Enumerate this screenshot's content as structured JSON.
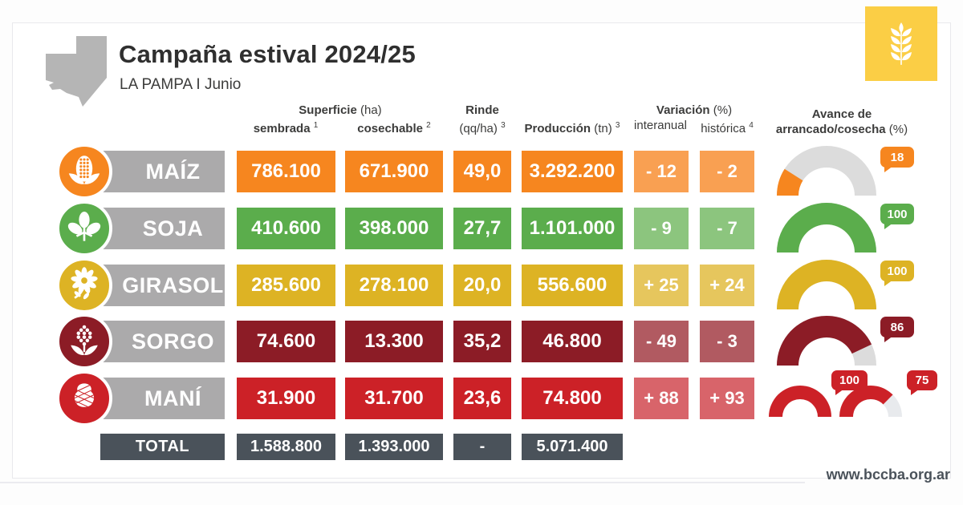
{
  "header": {
    "title": "Campaña estival 2024/25",
    "subtitle": "LA PAMPA I Junio"
  },
  "logo": {
    "color": "#FBCE45",
    "icon": "wheat-icon"
  },
  "columns": {
    "superficie_bold": "Superficie",
    "superficie_unit": "(ha)",
    "sembrada": "sembrada",
    "sembrada_sup": "1",
    "cosechable": "cosechable",
    "cosechable_sup": "2",
    "rinde_bold": "Rinde",
    "rinde_unit": "(qq/ha)",
    "rinde_sup": "3",
    "produccion_bold": "Producción",
    "produccion_unit": "(tn)",
    "produccion_sup": "3",
    "variacion_bold": "Variación",
    "variacion_unit": "(%)",
    "interanual": "interanual",
    "historica": "histórica",
    "historica_sup": "4",
    "avance_line1": "Avance de",
    "avance_line2": "arrancado/cosecha",
    "avance_unit": "(%)"
  },
  "bar_color": "#ABAAAB",
  "rows": [
    {
      "crop": "MAÍZ",
      "icon": "corn-icon",
      "color": "#F6861F",
      "light": "#F9A052",
      "track": "#DCDCDC",
      "sembrada": "786.100",
      "cosechable": "671.900",
      "rinde": "49,0",
      "produccion": "3.292.200",
      "interanual": "- 12",
      "historica": "- 2",
      "gauges": [
        18
      ]
    },
    {
      "crop": "SOJA",
      "icon": "soy-icon",
      "color": "#5BAD4C",
      "light": "#8CC57E",
      "track": "#DCDCDC",
      "sembrada": "410.600",
      "cosechable": "398.000",
      "rinde": "27,7",
      "produccion": "1.101.000",
      "interanual": "- 9",
      "historica": "- 7",
      "gauges": [
        100
      ]
    },
    {
      "crop": "GIRASOL",
      "icon": "sunflower-icon",
      "color": "#DDB324",
      "light": "#E6C65D",
      "track": "#DCDCDC",
      "sembrada": "285.600",
      "cosechable": "278.100",
      "rinde": "20,0",
      "produccion": "556.600",
      "interanual": "+ 25",
      "historica": "+ 24",
      "gauges": [
        100
      ]
    },
    {
      "crop": "SORGO",
      "icon": "sorghum-icon",
      "color": "#8C1C26",
      "light": "#B15A61",
      "track": "#DCDCDC",
      "sembrada": "74.600",
      "cosechable": "13.300",
      "rinde": "35,2",
      "produccion": "46.800",
      "interanual": "- 49",
      "historica": "- 3",
      "gauges": [
        86
      ]
    },
    {
      "crop": "MANÍ",
      "icon": "peanut-icon",
      "color": "#CC2127",
      "light": "#D8646A",
      "track": "#E8EAED",
      "sembrada": "31.900",
      "cosechable": "31.700",
      "rinde": "23,6",
      "produccion": "74.800",
      "interanual": "+ 88",
      "historica": "+ 93",
      "gauges": [
        100,
        75
      ]
    }
  ],
  "total": {
    "label": "TOTAL",
    "color": "#4A525A",
    "sembrada": "1.588.800",
    "cosechable": "1.393.000",
    "rinde": "-",
    "produccion": "5.071.400"
  },
  "footer": {
    "url": "www.bccba.org.ar"
  },
  "chart_data": {
    "type": "table",
    "title": "Campaña estival 2024/25 — La Pampa, Junio",
    "columns": [
      "Superficie sembrada (ha)",
      "Superficie cosechable (ha)",
      "Rinde (qq/ha)",
      "Producción (tn)",
      "Variación interanual (%)",
      "Variación histórica (%)",
      "Avance de arrancado/cosecha (%)"
    ],
    "rows": [
      {
        "crop": "Maíz",
        "sembrada": 786100,
        "cosechable": 671900,
        "rinde": 49.0,
        "produccion": 3292200,
        "var_interanual": -12,
        "var_historica": -2,
        "avance": [
          18
        ]
      },
      {
        "crop": "Soja",
        "sembrada": 410600,
        "cosechable": 398000,
        "rinde": 27.7,
        "produccion": 1101000,
        "var_interanual": -9,
        "var_historica": -7,
        "avance": [
          100
        ]
      },
      {
        "crop": "Girasol",
        "sembrada": 285600,
        "cosechable": 278100,
        "rinde": 20.0,
        "produccion": 556600,
        "var_interanual": 25,
        "var_historica": 24,
        "avance": [
          100
        ]
      },
      {
        "crop": "Sorgo",
        "sembrada": 74600,
        "cosechable": 13300,
        "rinde": 35.2,
        "produccion": 46800,
        "var_interanual": -49,
        "var_historica": -3,
        "avance": [
          86
        ]
      },
      {
        "crop": "Maní",
        "sembrada": 31900,
        "cosechable": 31700,
        "rinde": 23.6,
        "produccion": 74800,
        "var_interanual": 88,
        "var_historica": 93,
        "avance": [
          100,
          75
        ]
      }
    ],
    "total": {
      "sembrada": 1588800,
      "cosechable": 1393000,
      "produccion": 5071400
    },
    "gauge_type": "half-donut, filled left-to-right by percent"
  }
}
